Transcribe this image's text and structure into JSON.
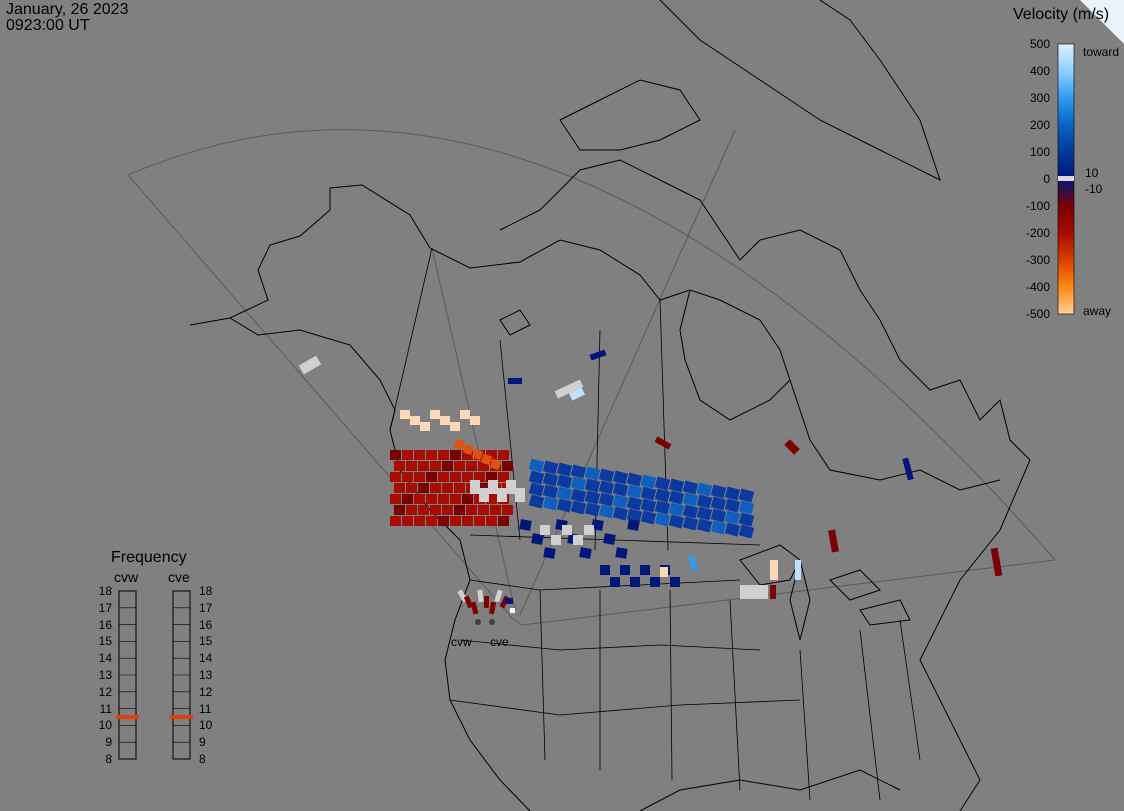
{
  "header": {
    "date": "January, 26 2023",
    "time": "0923:00 UT"
  },
  "velocity_scale": {
    "title": "Velocity (m/s)",
    "ticks": [
      "500",
      "400",
      "300",
      "200",
      "100",
      "0",
      "-100",
      "-200",
      "-300",
      "-400",
      "-500"
    ],
    "label_toward": "toward",
    "label_pos": "10",
    "label_neg": "-10",
    "label_away": "away",
    "colors": [
      "#dff0ff",
      "#8fcfff",
      "#2e9cf0",
      "#0a62c8",
      "#003a9a",
      "#00177a",
      "#7a0000",
      "#a60c00",
      "#d84000",
      "#ff8a10",
      "#ffcf9a"
    ]
  },
  "frequency_panel": {
    "title": "Frequency",
    "radars": [
      "cvw",
      "cve"
    ],
    "levels": [
      "18",
      "17",
      "16",
      "15",
      "14",
      "13",
      "12",
      "11",
      "10",
      "9",
      "8"
    ],
    "cvw_mhz": 10.5,
    "cve_mhz": 10.5,
    "marker_color": "#e04010"
  },
  "radar_sites": {
    "west": "cvw",
    "east": "cve"
  }
}
